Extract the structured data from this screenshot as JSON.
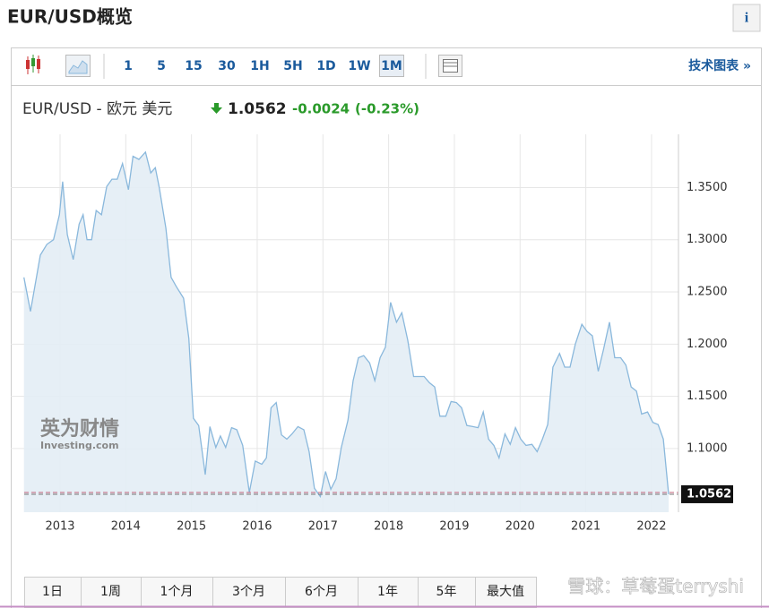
{
  "header": {
    "title": "EUR/USD概览",
    "info": "i"
  },
  "toolbar": {
    "intervals": [
      {
        "label": "1"
      },
      {
        "label": "5"
      },
      {
        "label": "15"
      },
      {
        "label": "30"
      },
      {
        "label": "1H"
      },
      {
        "label": "5H"
      },
      {
        "label": "1D"
      },
      {
        "label": "1W"
      },
      {
        "label": "1M",
        "active": true
      }
    ],
    "technical_link": "技术图表 »"
  },
  "quote": {
    "name": "EUR/USD - 欧元 美元",
    "change": -0.0024,
    "change_percent": "(-0.23%)"
  },
  "logo": {
    "name": "英为财情",
    "site": "Investing.com"
  },
  "ranges": [
    "1日",
    "1周",
    "1个月",
    "3个月",
    "6个月",
    "1年",
    "5年",
    "最大值"
  ],
  "watermark": "雪球：草莓蛋terryshi",
  "chart_data": {
    "type": "area",
    "color": "#8ab8dc",
    "last_price": 1.0562,
    "x": [
      2012.45,
      2012.55,
      2012.7,
      2012.8,
      2012.9,
      2012.99,
      2013.04,
      2013.11,
      2013.2,
      2013.29,
      2013.35,
      2013.41,
      2013.48,
      2013.55,
      2013.63,
      2013.71,
      2013.79,
      2013.87,
      2013.95,
      2014.04,
      2014.11,
      2014.2,
      2014.3,
      2014.38,
      2014.45,
      2014.51,
      2014.61,
      2014.69,
      2014.77,
      2014.88,
      2014.96,
      2015.03,
      2015.11,
      2015.21,
      2015.28,
      2015.37,
      2015.44,
      2015.52,
      2015.61,
      2015.69,
      2015.78,
      2015.88,
      2015.97,
      2016.07,
      2016.14,
      2016.21,
      2016.29,
      2016.37,
      2016.45,
      2016.53,
      2016.62,
      2016.71,
      2016.79,
      2016.87,
      2016.96,
      2017.04,
      2017.12,
      2017.2,
      2017.28,
      2017.38,
      2017.46,
      2017.54,
      2017.62,
      2017.71,
      2017.79,
      2017.87,
      2017.95,
      2018.03,
      2018.12,
      2018.2,
      2018.29,
      2018.38,
      2018.46,
      2018.54,
      2018.62,
      2018.7,
      2018.78,
      2018.87,
      2018.95,
      2019.03,
      2019.11,
      2019.19,
      2019.28,
      2019.36,
      2019.44,
      2019.52,
      2019.6,
      2019.68,
      2019.77,
      2019.85,
      2019.93,
      2020.01,
      2020.09,
      2020.18,
      2020.26,
      2020.34,
      2020.42,
      2020.5,
      2020.6,
      2020.68,
      2020.76,
      2020.84,
      2020.94,
      2021.02,
      2021.1,
      2021.19,
      2021.27,
      2021.36,
      2021.44,
      2021.53,
      2021.61,
      2021.69,
      2021.77,
      2021.85,
      2021.94,
      2022.02,
      2022.1,
      2022.18,
      2022.26
    ],
    "values": [
      1.2639,
      1.2313,
      1.2853,
      1.2956,
      1.3,
      1.324,
      1.3557,
      1.305,
      1.281,
      1.315,
      1.324,
      1.3,
      1.3,
      1.328,
      1.324,
      1.351,
      1.358,
      1.358,
      1.373,
      1.348,
      1.38,
      1.377,
      1.384,
      1.364,
      1.369,
      1.35,
      1.311,
      1.264,
      1.255,
      1.244,
      1.2055,
      1.129,
      1.122,
      1.075,
      1.121,
      1.101,
      1.112,
      1.101,
      1.12,
      1.118,
      1.103,
      1.058,
      1.088,
      1.085,
      1.091,
      1.139,
      1.144,
      1.113,
      1.109,
      1.114,
      1.121,
      1.118,
      1.097,
      1.062,
      1.054,
      1.078,
      1.061,
      1.071,
      1.101,
      1.127,
      1.165,
      1.187,
      1.189,
      1.182,
      1.165,
      1.187,
      1.197,
      1.24,
      1.221,
      1.23,
      1.204,
      1.169,
      1.169,
      1.169,
      1.163,
      1.159,
      1.131,
      1.131,
      1.145,
      1.144,
      1.139,
      1.122,
      1.121,
      1.12,
      1.135,
      1.109,
      1.103,
      1.091,
      1.114,
      1.104,
      1.12,
      1.109,
      1.103,
      1.104,
      1.097,
      1.109,
      1.123,
      1.178,
      1.191,
      1.178,
      1.178,
      1.2,
      1.219,
      1.212,
      1.208,
      1.174,
      1.195,
      1.221,
      1.187,
      1.187,
      1.18,
      1.159,
      1.155,
      1.133,
      1.135,
      1.125,
      1.123,
      1.109,
      1.0562
    ],
    "xlim": [
      2012.25,
      2022.41
    ],
    "ylim": [
      1.039,
      1.401
    ],
    "xticks": [
      2013,
      2014,
      2015,
      2016,
      2017,
      2018,
      2019,
      2020,
      2021,
      2022
    ],
    "yticks": [
      {
        "value": 1.1,
        "label": "1.1000"
      },
      {
        "value": 1.15,
        "label": "1.1500"
      },
      {
        "value": 1.2,
        "label": "1.2000"
      },
      {
        "value": 1.25,
        "label": "1.2500"
      },
      {
        "value": 1.3,
        "label": "1.3000"
      },
      {
        "value": 1.35,
        "label": "1.3500"
      }
    ],
    "grid": true
  }
}
